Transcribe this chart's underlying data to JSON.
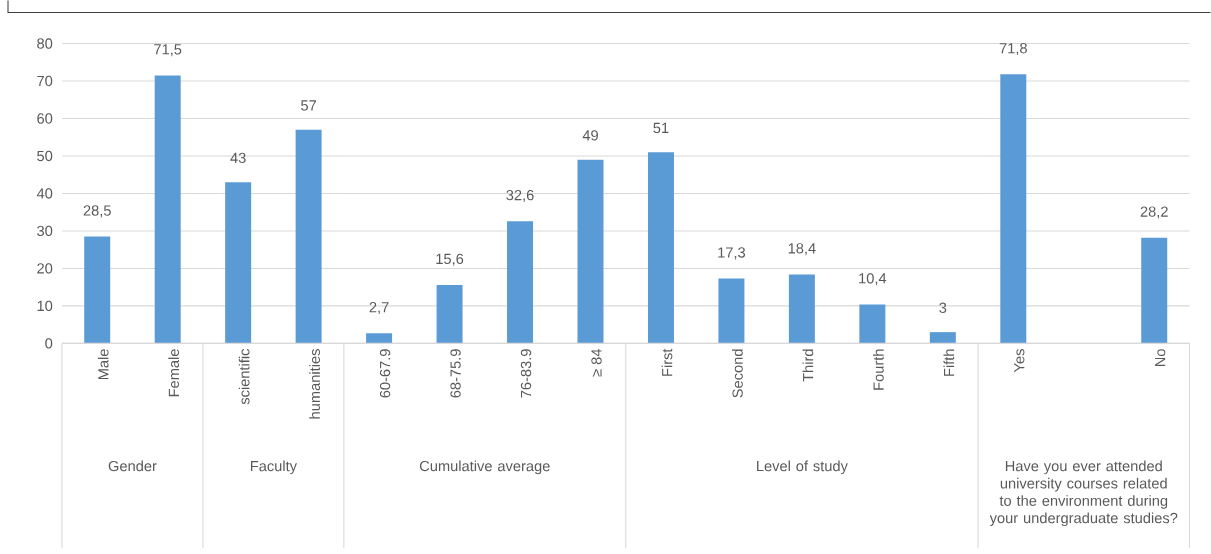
{
  "chart_data": {
    "type": "bar",
    "categories": [
      "Male",
      "Female",
      "scientific",
      "humanities",
      "60-67.9",
      "68-75.9",
      "76-83.9",
      "≥ 84",
      "First",
      "Second",
      "Third",
      "Fourth",
      "Fifth",
      "Yes",
      null,
      "No"
    ],
    "values": [
      28.5,
      71.5,
      43,
      57,
      2.7,
      15.6,
      32.6,
      49,
      51,
      17.3,
      18.4,
      10.4,
      3,
      71.8,
      null,
      28.2
    ],
    "value_labels": [
      "28,5",
      "71,5",
      "43",
      "57",
      "2,7",
      "15,6",
      "32,6",
      "49",
      "51",
      "17,3",
      "18,4",
      "10,4",
      "3",
      "71,8",
      null,
      "28,2"
    ],
    "color": "#5b9bd5",
    "ylim": [
      0,
      80
    ],
    "yticks": [
      0,
      10,
      20,
      30,
      40,
      50,
      60,
      70,
      80
    ],
    "grid": "y",
    "annotations": [
      "Gender",
      "Faculty",
      "Cumulative average",
      "Level of study",
      "Have you ever attended university courses related to the environment during your undergraduate studies?"
    ]
  }
}
